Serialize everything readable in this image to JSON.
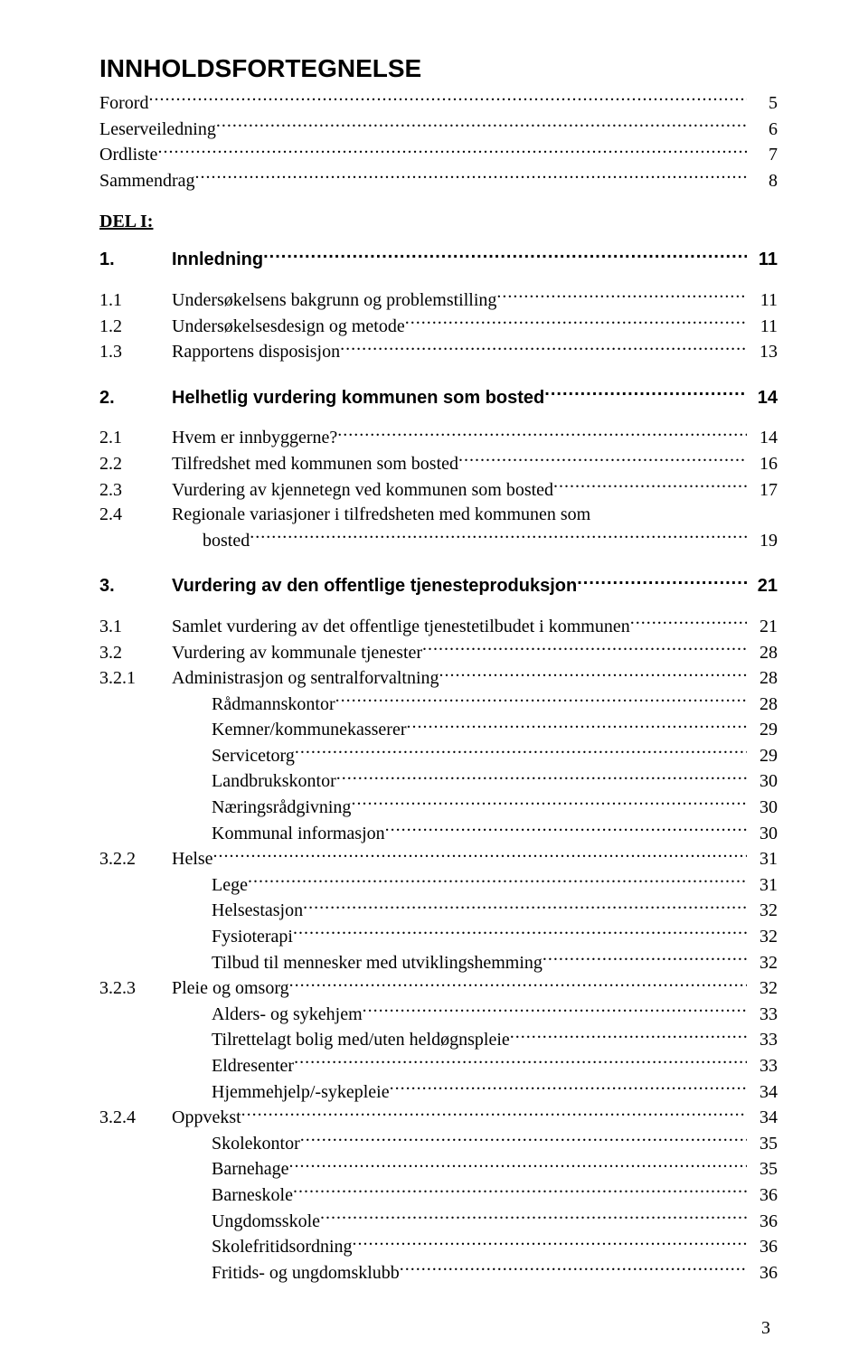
{
  "title": "INNHOLDSFORTEGNELSE",
  "part_label": "DEL I:",
  "footer_page_number": "3",
  "front_matter": [
    {
      "label": "Forord",
      "page": "5"
    },
    {
      "label": "Leserveiledning",
      "page": "6"
    },
    {
      "label": "Ordliste",
      "page": "7"
    },
    {
      "label": "Sammendrag",
      "page": "8"
    }
  ],
  "sections": [
    {
      "num": "1.",
      "label": "Innledning",
      "page": "11",
      "subs": [
        {
          "num": "1.1",
          "label": "Undersøkelsens bakgrunn og problemstilling",
          "page": "11"
        },
        {
          "num": "1.2",
          "label": "Undersøkelsesdesign og metode",
          "page": "11"
        },
        {
          "num": "1.3",
          "label": "Rapportens disposisjon",
          "page": "13"
        }
      ]
    },
    {
      "num": "2.",
      "label": "Helhetlig vurdering kommunen som bosted",
      "page": "14",
      "subs": [
        {
          "num": "2.1",
          "label": "Hvem er innbyggerne?",
          "page": "14"
        },
        {
          "num": "2.2",
          "label": "Tilfredshet med kommunen som bosted",
          "page": "16"
        },
        {
          "num": "2.3",
          "label": "Vurdering av kjennetegn ved kommunen som bosted",
          "page": "17"
        },
        {
          "num": "2.4",
          "label": "Regionale variasjoner i tilfredsheten med kommunen som",
          "page": "",
          "continuation": {
            "label": "bosted",
            "page": "19"
          }
        }
      ]
    },
    {
      "num": "3.",
      "label": "Vurdering av den offentlige tjenesteproduksjon",
      "page": "21",
      "subs": [
        {
          "num": "3.1",
          "label": "Samlet vurdering av det offentlige tjenestetilbudet i kommunen",
          "page": "21"
        },
        {
          "num": "3.2",
          "label": "Vurdering av kommunale tjenester",
          "page": "28"
        },
        {
          "num": "3.2.1",
          "label": "Administrasjon og sentralforvaltning",
          "page": "28",
          "items": [
            {
              "label": "Rådmannskontor",
              "page": "28"
            },
            {
              "label": "Kemner/kommunekasserer",
              "page": "29"
            },
            {
              "label": "Servicetorg",
              "page": "29"
            },
            {
              "label": "Landbrukskontor",
              "page": "30"
            },
            {
              "label": "Næringsrådgivning",
              "page": "30"
            },
            {
              "label": "Kommunal informasjon",
              "page": "30"
            }
          ]
        },
        {
          "num": "3.2.2",
          "label": "Helse",
          "page": "31",
          "items": [
            {
              "label": "Lege",
              "page": "31"
            },
            {
              "label": "Helsestasjon",
              "page": "32"
            },
            {
              "label": "Fysioterapi",
              "page": "32"
            },
            {
              "label": "Tilbud til mennesker med utviklingshemming",
              "page": "32"
            }
          ]
        },
        {
          "num": "3.2.3",
          "label": "Pleie og omsorg",
          "page": "32",
          "items": [
            {
              "label": "Alders- og sykehjem",
              "page": "33"
            },
            {
              "label": "Tilrettelagt bolig med/uten heldøgnspleie",
              "page": "33"
            },
            {
              "label": "Eldresenter",
              "page": "33"
            },
            {
              "label": "Hjemmehjelp/-sykepleie",
              "page": "34"
            }
          ]
        },
        {
          "num": "3.2.4",
          "label": "Oppvekst",
          "page": "34",
          "items": [
            {
              "label": "Skolekontor",
              "page": "35"
            },
            {
              "label": "Barnehage",
              "page": "35"
            },
            {
              "label": "Barneskole",
              "page": "36"
            },
            {
              "label": "Ungdomsskole",
              "page": "36"
            },
            {
              "label": "Skolefritidsordning",
              "page": "36"
            },
            {
              "label": "Fritids- og ungdomsklubb",
              "page": "36"
            }
          ]
        }
      ]
    }
  ]
}
